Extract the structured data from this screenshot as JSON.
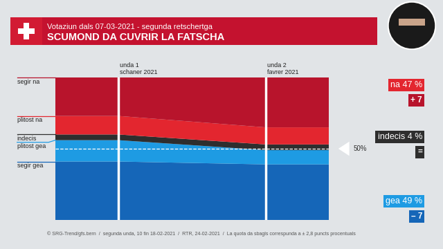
{
  "chart_data": {
    "type": "stacked_area",
    "subtitle": "Votaziun dals 07-03-2021 - segunda retschertga",
    "title": "SCUMOND DA CUVRIR LA FATSCHA",
    "categories": [
      "unda 1\nschaner 2021",
      "unda 2\nfavrer 2021"
    ],
    "series": [
      {
        "name": "segir na",
        "color": "#b8142c",
        "values": [
          27,
          35
        ]
      },
      {
        "name": "plitost na",
        "color": "#e3262f",
        "values": [
          13,
          12
        ]
      },
      {
        "name": "indecis",
        "color": "#2e2e2e",
        "values": [
          4,
          4
        ]
      },
      {
        "name": "plitost gea",
        "color": "#1e9be3",
        "values": [
          15,
          10
        ]
      },
      {
        "name": "segir gea",
        "color": "#1566b8",
        "values": [
          41,
          39
        ]
      }
    ],
    "stacked": true,
    "ylim": [
      0,
      100
    ],
    "tick_labels": false,
    "reference_line": {
      "value": 50,
      "label": "50%"
    },
    "summary": [
      {
        "label": "na 47 %",
        "change": "+ 7"
      },
      {
        "label": "indecis 4 %",
        "change": "="
      },
      {
        "label": "gea 49 %",
        "change": "– 7"
      }
    ],
    "footer": "© SRG-Trend/gfs.bern  /  segunda unda, 10 fin 18-02-2021  /  RTR, 24-02-2021  /  La quota da sbagls correspunda a ± 2,8 puncts procentuals"
  }
}
